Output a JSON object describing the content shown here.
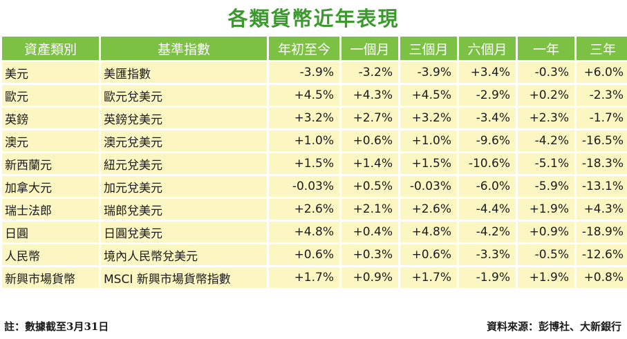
{
  "title": "各類貨幣近年表現",
  "table": {
    "headers": [
      "資產類別",
      "基準指數",
      "年初至今",
      "一個月",
      "三個月",
      "六個月",
      "一年",
      "三年"
    ],
    "rows": [
      [
        "美元",
        "美匯指數",
        "-3.9%",
        "-3.2%",
        "-3.9%",
        "+3.4%",
        "-0.3%",
        "+6.0%"
      ],
      [
        "歐元",
        "歐元兌美元",
        "+4.5%",
        "+4.3%",
        "+4.5%",
        "-2.9%",
        "+0.2%",
        "-2.3%"
      ],
      [
        "英鎊",
        "英鎊兌美元",
        "+3.2%",
        "+2.7%",
        "+3.2%",
        "-3.4%",
        "+2.3%",
        "-1.7%"
      ],
      [
        "澳元",
        "澳元兌美元",
        "+1.0%",
        "+0.6%",
        "+1.0%",
        "-9.6%",
        "-4.2%",
        "-16.5%"
      ],
      [
        "新西蘭元",
        "紐元兌美元",
        "+1.5%",
        "+1.4%",
        "+1.5%",
        "-10.6%",
        "-5.1%",
        "-18.3%"
      ],
      [
        "加拿大元",
        "加元兌美元",
        "-0.03%",
        "+0.5%",
        "-0.03%",
        "-6.0%",
        "-5.9%",
        "-13.1%"
      ],
      [
        "瑞士法郎",
        "瑞郎兌美元",
        "+2.6%",
        "+2.1%",
        "+2.6%",
        "-4.4%",
        "+1.9%",
        "+4.3%"
      ],
      [
        "日圓",
        "日圓兌美元",
        "+4.8%",
        "+0.4%",
        "+4.8%",
        "-4.2%",
        "+0.9%",
        "-18.9%"
      ],
      [
        "人民幣",
        "境內人民幣兌美元",
        "+0.6%",
        "+0.3%",
        "+0.6%",
        "-3.3%",
        "-0.5%",
        "-12.6%"
      ],
      [
        "新興市場貨幣",
        "MSCI 新興市場貨幣指數",
        "+1.7%",
        "+0.9%",
        "+1.7%",
        "-1.9%",
        "+1.9%",
        "+0.8%"
      ]
    ]
  },
  "footer": {
    "note": "註：數據截至3月31日",
    "source": "資料來源：彭博社、大新銀行"
  },
  "colors": {
    "title": "#3a9a2c",
    "header_bg": "#7cc143",
    "cell_bg": "#fbf6c2"
  }
}
